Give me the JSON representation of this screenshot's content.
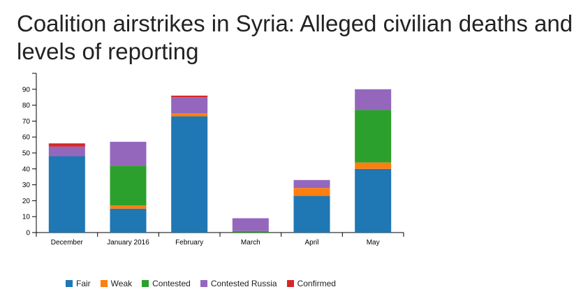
{
  "chart_data": {
    "type": "bar",
    "stacked": true,
    "title": "Coalition airstrikes in Syria: Alleged civilian deaths and levels of reporting",
    "categories": [
      "December",
      "January 2016",
      "February",
      "March",
      "April",
      "May"
    ],
    "series": [
      {
        "name": "Fair",
        "color": "#1f77b4",
        "values": [
          48,
          15,
          73,
          0,
          23,
          40
        ]
      },
      {
        "name": "Weak",
        "color": "#ff7f0e",
        "values": [
          0,
          2,
          2,
          0,
          5,
          4
        ]
      },
      {
        "name": "Contested",
        "color": "#2ca02c",
        "values": [
          0,
          25,
          0,
          1,
          0,
          33
        ]
      },
      {
        "name": "Contested Russia",
        "color": "#9467bd",
        "values": [
          6,
          15,
          10,
          8,
          5,
          13
        ]
      },
      {
        "name": "Confirmed",
        "color": "#d62728",
        "values": [
          2,
          0,
          1,
          0,
          0,
          0
        ]
      }
    ],
    "ylim": [
      0,
      100
    ],
    "yticks": [
      0,
      10,
      20,
      30,
      40,
      50,
      60,
      70,
      80,
      90
    ],
    "legend_position": "bottom-left",
    "grid": false
  }
}
